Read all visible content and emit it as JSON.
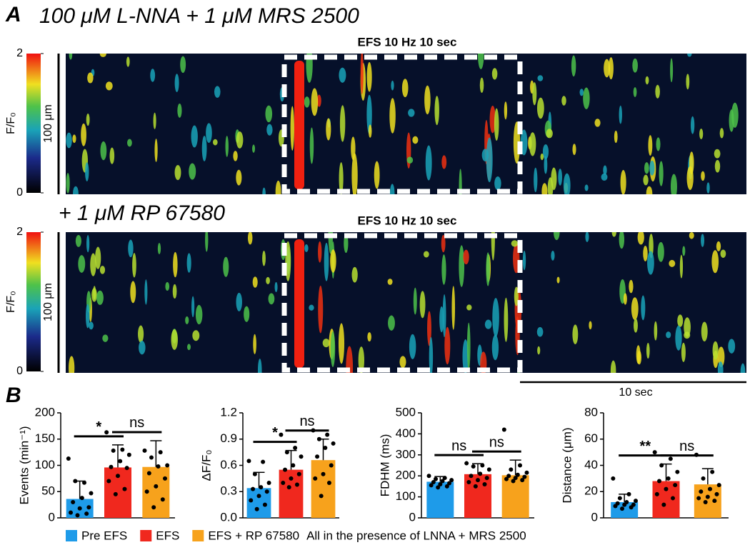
{
  "panel_a": {
    "label": "A",
    "title": "100 μM L-NNA + 1 μM MRS 2500",
    "stim": "EFS 10 Hz 10 sec",
    "scale": "100 μm"
  },
  "panel_a2": {
    "title": "+ 1 μM RP 67580",
    "stim": "EFS 10 Hz 10 sec",
    "scale": "100 μm",
    "time_scale": "10 sec"
  },
  "colorbars": [
    {
      "label": "F/F₀",
      "ticks": [
        0,
        2
      ]
    },
    {
      "label": "F/F₀",
      "ticks": [
        0,
        2
      ]
    }
  ],
  "panel_b": {
    "label": "B",
    "note": "All in the presence of LNNA + MRS 2500"
  },
  "chart_data": [
    {
      "type": "bar",
      "y_label": "Events (min⁻¹)",
      "ylim": [
        0,
        200
      ],
      "yticks": [
        0,
        50,
        100,
        150,
        200
      ],
      "annotations": [
        "*",
        "ns"
      ],
      "series": [
        {
          "name": "Pre EFS",
          "color": "#1e9be9",
          "values": [
            36
          ],
          "errors": [
            34
          ],
          "points": [
            113,
            67,
            70,
            47,
            38,
            30,
            20,
            18,
            10,
            8,
            5
          ]
        },
        {
          "name": "EFS",
          "color": "#f0281e",
          "values": [
            96
          ],
          "errors": [
            43
          ],
          "points": [
            163,
            130,
            128,
            120,
            108,
            97,
            95,
            80,
            70,
            55,
            45
          ]
        },
        {
          "name": "EFS + RP 67580",
          "color": "#f7a21c",
          "values": [
            97
          ],
          "errors": [
            50
          ],
          "points": [
            128,
            125,
            115,
            100,
            98,
            85,
            75,
            60,
            50,
            35,
            20
          ]
        }
      ]
    },
    {
      "type": "bar",
      "y_label": "ΔF/F₀",
      "ylim": [
        0,
        1.2
      ],
      "yticks": [
        {
          "value": 0,
          "label": "0.0"
        },
        0.3,
        0.6,
        0.9,
        1.2
      ],
      "annotations": [
        "*",
        "ns"
      ],
      "series": [
        {
          "name": "Pre EFS",
          "color": "#1e9be9",
          "values": [
            0.34
          ],
          "errors": [
            0.18
          ],
          "points": [
            0.65,
            0.64,
            0.5,
            0.4,
            0.35,
            0.33,
            0.3,
            0.25,
            0.2,
            0.15,
            0.1
          ]
        },
        {
          "name": "EFS",
          "color": "#f0281e",
          "values": [
            0.55
          ],
          "errors": [
            0.22
          ],
          "points": [
            0.95,
            0.8,
            0.75,
            0.7,
            0.6,
            0.55,
            0.5,
            0.45,
            0.4,
            0.38,
            0.35
          ]
        },
        {
          "name": "EFS + RP 67580",
          "color": "#f7a21c",
          "values": [
            0.66
          ],
          "errors": [
            0.24
          ],
          "points": [
            1.0,
            0.95,
            0.9,
            0.85,
            0.8,
            0.7,
            0.6,
            0.5,
            0.45,
            0.4,
            0.25
          ]
        }
      ]
    },
    {
      "type": "bar",
      "y_label": "FDHM (ms)",
      "ylim": [
        0,
        500
      ],
      "yticks": [
        0,
        100,
        200,
        300,
        400,
        500
      ],
      "annotations": [
        "ns",
        "ns"
      ],
      "series": [
        {
          "name": "Pre EFS",
          "color": "#1e9be9",
          "values": [
            172
          ],
          "errors": [
            25
          ],
          "points": [
            200,
            190,
            185,
            180,
            175,
            170,
            165,
            160,
            155,
            150,
            145
          ]
        },
        {
          "name": "EFS",
          "color": "#f0281e",
          "values": [
            208
          ],
          "errors": [
            50
          ],
          "points": [
            260,
            250,
            245,
            230,
            210,
            200,
            190,
            180,
            170,
            160,
            150
          ]
        },
        {
          "name": "EFS + RP 67580",
          "color": "#f7a21c",
          "values": [
            203
          ],
          "errors": [
            72
          ],
          "points": [
            420,
            250,
            230,
            215,
            205,
            200,
            195,
            190,
            185,
            180,
            175
          ]
        }
      ]
    },
    {
      "type": "bar",
      "y_label": "Distance (μm)",
      "ylim": [
        0,
        80
      ],
      "yticks": [
        0,
        20,
        40,
        60,
        80
      ],
      "annotations": [
        "**",
        "ns"
      ],
      "series": [
        {
          "name": "Pre EFS",
          "color": "#1e9be9",
          "values": [
            12
          ],
          "errors": [
            6
          ],
          "points": [
            30,
            18,
            15,
            13,
            12,
            11,
            10,
            10,
            9,
            8,
            7
          ]
        },
        {
          "name": "EFS",
          "color": "#f0281e",
          "values": [
            28
          ],
          "errors": [
            13
          ],
          "points": [
            50,
            45,
            40,
            35,
            30,
            28,
            25,
            22,
            18,
            15,
            10
          ]
        },
        {
          "name": "EFS + RP 67580",
          "color": "#f7a21c",
          "values": [
            25.5
          ],
          "errors": [
            12
          ],
          "points": [
            48,
            35,
            30,
            25,
            22,
            20,
            18,
            16,
            15,
            13,
            12
          ]
        }
      ]
    }
  ]
}
